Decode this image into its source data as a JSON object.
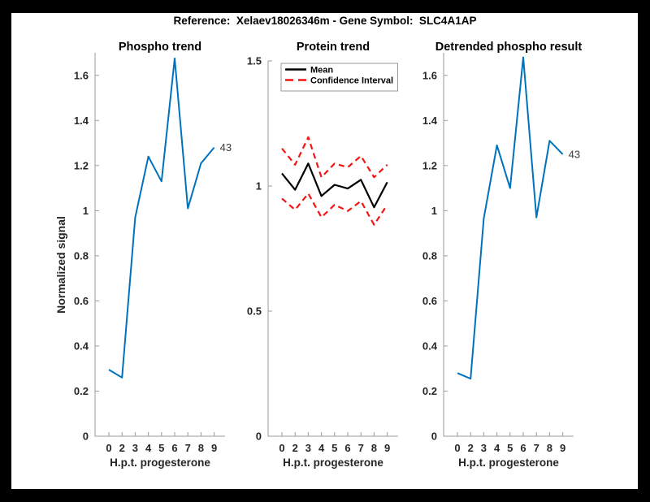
{
  "page": {
    "title": "Reference:  Xelaev18026346m - Gene Symbol:  SLC4A1AP"
  },
  "colors": {
    "line_blue": "#0072BD",
    "ci_red": "#f51414",
    "mean_black": "#000000",
    "axis": "#9a9a9a",
    "tick_text": "#262626",
    "title_text": "#000000",
    "end_label_text": "#3a3a3a",
    "figure_bg": "#ffffff",
    "border_bg": "#000000"
  },
  "chart_data": [
    {
      "type": "line",
      "title": "Phospho trend",
      "xlabel": "H.p.t. progesterone",
      "ylabel": "Normalized signal",
      "x_tick_labels": [
        "0",
        "2",
        "3",
        "4",
        "5",
        "6",
        "7",
        "8",
        "9"
      ],
      "y_ticks": [
        0,
        0.2,
        0.4,
        0.6,
        0.8,
        1,
        1.2,
        1.4,
        1.6
      ],
      "y_tick_labels": [
        "0",
        "0.2",
        "0.4",
        "0.6",
        "0.8",
        "1",
        "1.2",
        "1.4",
        "1.6"
      ],
      "ylim": [
        0,
        1.7
      ],
      "grid": false,
      "end_label": "43",
      "series": [
        {
          "name": "phospho-signal",
          "color": "#0072BD",
          "dash": null,
          "width": 2,
          "values": [
            0.295,
            0.26,
            0.97,
            1.24,
            1.13,
            1.675,
            1.01,
            1.21,
            1.28
          ]
        }
      ]
    },
    {
      "type": "line",
      "title": "Protein trend",
      "xlabel": "H.p.t. progesterone",
      "ylabel": "",
      "x_tick_labels": [
        "0",
        "2",
        "3",
        "4",
        "5",
        "6",
        "7",
        "8",
        "9"
      ],
      "y_ticks": [
        0,
        0.5,
        1,
        1.5
      ],
      "y_tick_labels": [
        "0",
        "0.5",
        "1",
        "1.5"
      ],
      "ylim": [
        0,
        1.5
      ],
      "grid": false,
      "end_label": "",
      "series": [
        {
          "name": "mean",
          "color": "#000000",
          "dash": null,
          "width": 2.2,
          "values": [
            1.05,
            0.985,
            1.09,
            0.96,
            1.005,
            0.99,
            1.025,
            0.915,
            1.015
          ]
        },
        {
          "name": "confidence-upper",
          "color": "#f51414",
          "dash": "7 5",
          "width": 2.2,
          "values": [
            1.15,
            1.085,
            1.195,
            1.035,
            1.09,
            1.075,
            1.12,
            1.035,
            1.085
          ]
        },
        {
          "name": "confidence-lower",
          "color": "#f51414",
          "dash": "7 5",
          "width": 2.2,
          "values": [
            0.95,
            0.905,
            0.97,
            0.875,
            0.925,
            0.9,
            0.94,
            0.845,
            0.925
          ]
        }
      ],
      "legend": {
        "position": "top-left",
        "items": [
          {
            "label": "Mean",
            "color": "#000000",
            "dash": null
          },
          {
            "label": "Confidence Interval",
            "color": "#f51414",
            "dash": "10 6"
          }
        ]
      }
    },
    {
      "type": "line",
      "title": "Detrended phospho result",
      "xlabel": "H.p.t. progesterone",
      "ylabel": "",
      "x_tick_labels": [
        "0",
        "2",
        "3",
        "4",
        "5",
        "6",
        "7",
        "8",
        "9"
      ],
      "y_ticks": [
        0,
        0.2,
        0.4,
        0.6,
        0.8,
        1,
        1.2,
        1.4,
        1.6
      ],
      "y_tick_labels": [
        "0",
        "0.2",
        "0.4",
        "0.6",
        "0.8",
        "1",
        "1.2",
        "1.4",
        "1.6"
      ],
      "ylim": [
        0,
        1.7
      ],
      "grid": false,
      "end_label": "43",
      "series": [
        {
          "name": "detrended-phospho-signal",
          "color": "#0072BD",
          "dash": null,
          "width": 2,
          "values": [
            0.28,
            0.255,
            0.965,
            1.29,
            1.1,
            1.68,
            0.97,
            1.31,
            1.25
          ]
        }
      ]
    }
  ]
}
